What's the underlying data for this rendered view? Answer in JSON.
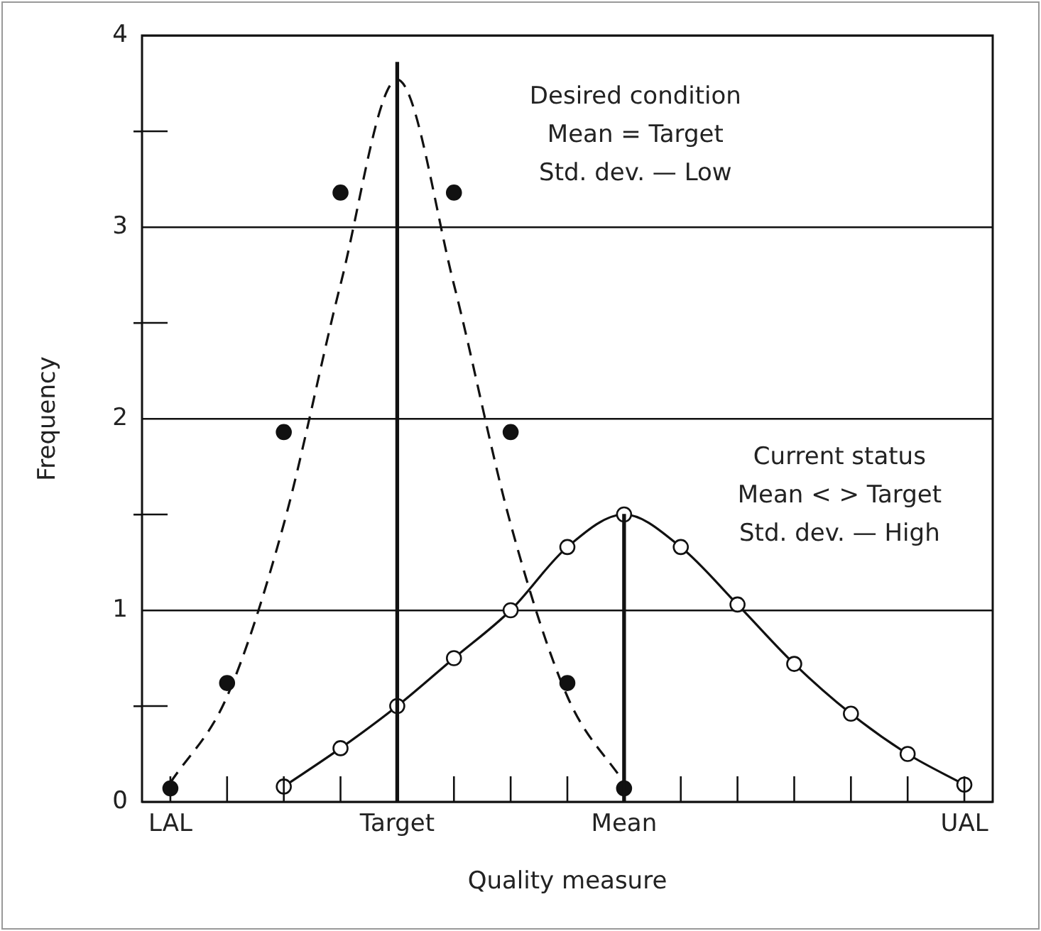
{
  "chart_data": {
    "type": "line",
    "xlabel": "Quality measure",
    "ylabel": "Frequency",
    "annotations": [
      "Desired condition\nMean = Target\nStd. dev. — Low",
      "Current status\nMean < > Target\nStd. dev. — High"
    ],
    "categories": [
      "LAL",
      null,
      null,
      null,
      "Target",
      null,
      null,
      null,
      "Mean",
      null,
      null,
      null,
      null,
      null,
      "UAL"
    ],
    "ylim": [
      0,
      4
    ],
    "yticks": [
      0,
      {
        "value": 0.5,
        "label": null
      },
      1,
      {
        "value": 1.5,
        "label": null
      },
      2,
      {
        "value": 2.5,
        "label": null
      },
      3,
      {
        "value": 3.5,
        "label": null
      },
      4
    ],
    "grid": "y",
    "legend": false,
    "series": [
      {
        "color": "#111111",
        "line_style": "dashed",
        "marker": "none",
        "values": [
          0.1,
          0.55,
          1.45,
          2.7,
          3.77,
          2.7,
          1.45,
          0.55,
          0.1,
          null,
          null,
          null,
          null,
          null,
          null
        ]
      },
      {
        "type": "scatter",
        "color": "#111111",
        "marker": "circle",
        "values": [
          0.07,
          0.62,
          1.93,
          3.18,
          null,
          3.18,
          1.93,
          0.62,
          0.07,
          null,
          null,
          null,
          null,
          null,
          null
        ]
      },
      {
        "color": "#111111",
        "line_style": "solid",
        "marker": "circle",
        "values": [
          null,
          null,
          0.08,
          0.28,
          0.5,
          0.75,
          1.0,
          1.33,
          1.5,
          1.33,
          1.03,
          0.72,
          0.46,
          0.25,
          0.09
        ]
      },
      {
        "type": "bar",
        "color": "#111111",
        "values": [
          null,
          null,
          null,
          null,
          3.86,
          null,
          null,
          null,
          1.5,
          null,
          null,
          null,
          null,
          null,
          null
        ]
      }
    ]
  }
}
